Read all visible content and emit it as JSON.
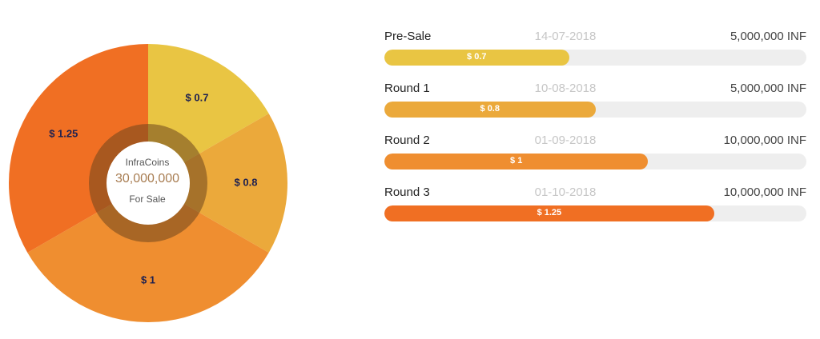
{
  "chart_data": [
    {
      "type": "pie",
      "categories": [
        "$ 0.7",
        "$ 0.8",
        "$ 1",
        "$ 1.25"
      ],
      "values": [
        5000000,
        5000000,
        10000000,
        10000000
      ],
      "colors": [
        "#e9c543",
        "#eba93b",
        "#ef8e30",
        "#f06f23"
      ],
      "center": {
        "title": "InfraCoins",
        "amount": "30,000,000",
        "subtitle": "For Sale"
      }
    },
    {
      "type": "bar",
      "orientation": "horizontal",
      "max_price": 1.6,
      "rounds": [
        {
          "name": "Pre-Sale",
          "date": "14-07-2018",
          "supply": "5,000,000 INF",
          "price_label": "$ 0.7",
          "price": 0.7,
          "color": "#e9c543"
        },
        {
          "name": "Round 1",
          "date": "10-08-2018",
          "supply": "5,000,000 INF",
          "price_label": "$ 0.8",
          "price": 0.8,
          "color": "#eba93b"
        },
        {
          "name": "Round 2",
          "date": "01-09-2018",
          "supply": "10,000,000 INF",
          "price_label": "$ 1",
          "price": 1,
          "color": "#ef8e30"
        },
        {
          "name": "Round 3",
          "date": "01-10-2018",
          "supply": "10,000,000 INF",
          "price_label": "$ 1.25",
          "price": 1.25,
          "color": "#f06f23"
        }
      ]
    }
  ]
}
